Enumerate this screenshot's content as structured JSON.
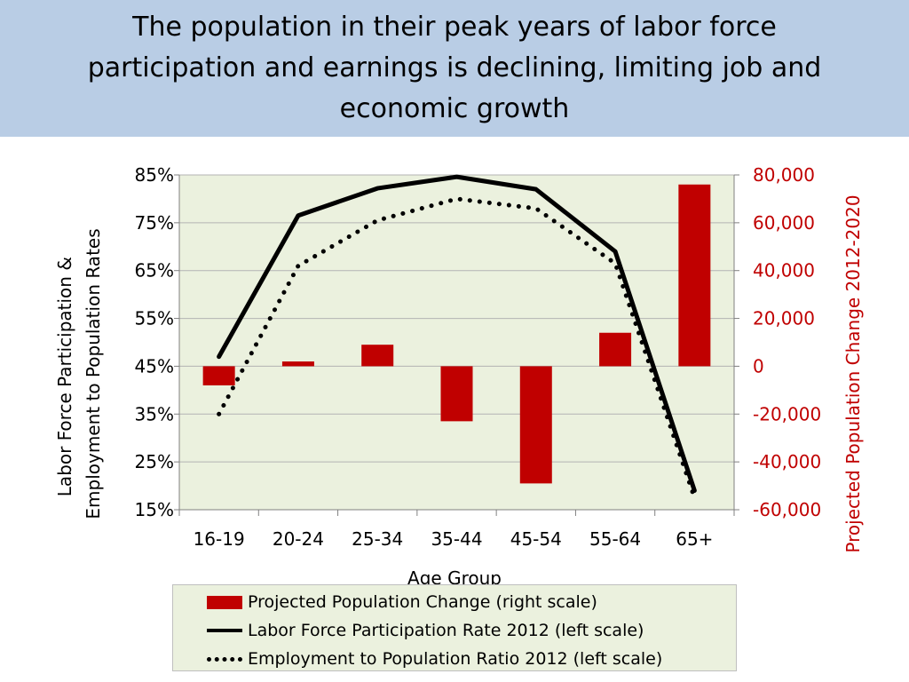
{
  "header": {
    "title": "The population in their peak years of labor force participation and earnings is declining, limiting job and economic growth"
  },
  "colors": {
    "banner_bg": "#b9cde5",
    "plot_bg": "#ebf1de",
    "bar": "#c00000",
    "right_axis": "#c00000",
    "line": "#000000"
  },
  "chart_data": {
    "type": "bar",
    "categories": [
      "16-19",
      "20-24",
      "25-34",
      "35-44",
      "45-54",
      "55-64",
      "65+"
    ],
    "xlabel": "Age Group",
    "ylabel_left": "Labor Force Participation & Employment to Population Rates",
    "ylabel_left_lines": [
      "Labor Force Participation &",
      "Employment to Population Rates"
    ],
    "ylabel_right": "Projected Population Change 2012-2020",
    "ylim_left": [
      0.15,
      0.85
    ],
    "ylim_right": [
      -60000,
      80000
    ],
    "yticks_left": [
      "15%",
      "25%",
      "35%",
      "45%",
      "55%",
      "65%",
      "75%",
      "85%"
    ],
    "yticks_right": [
      "-60,000",
      "-40,000",
      "-20,000",
      "0",
      "20,000",
      "40,000",
      "60,000",
      "80,000"
    ],
    "grid": true,
    "legend_position": "bottom",
    "series": [
      {
        "name": "Projected Population Change (right scale)",
        "type": "bar",
        "axis": "right",
        "values": [
          -8000,
          2000,
          9000,
          -23000,
          -49000,
          14000,
          76000
        ]
      },
      {
        "name": "Labor Force Participation Rate 2012 (left scale)",
        "type": "line",
        "axis": "left",
        "style": "solid",
        "values": [
          0.47,
          0.765,
          0.822,
          0.846,
          0.82,
          0.69,
          0.19
        ]
      },
      {
        "name": "Employment to Population Ratio 2012 (left scale)",
        "type": "line",
        "axis": "left",
        "style": "dotted",
        "values": [
          0.35,
          0.66,
          0.755,
          0.8,
          0.78,
          0.665,
          0.175
        ]
      }
    ]
  }
}
